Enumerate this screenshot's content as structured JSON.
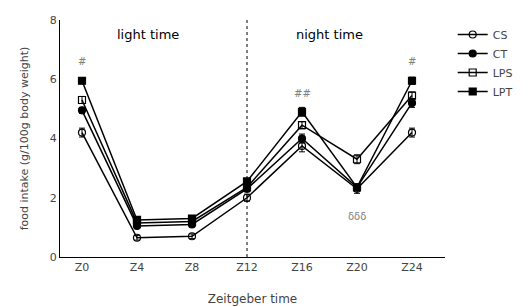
{
  "chart_data": {
    "type": "line",
    "xlabel": "Zeitgeber time",
    "ylabel": "food intake (g/100g body weight)",
    "categories": [
      "Z0",
      "Z4",
      "Z8",
      "Z12",
      "Z16",
      "Z20",
      "Z24"
    ],
    "series": [
      {
        "name": "CS",
        "color": "black",
        "marker": "circle-open",
        "values": [
          4.2,
          0.65,
          0.7,
          2.0,
          3.75,
          2.3,
          4.2
        ],
        "errors": [
          0.15,
          0.08,
          0.08,
          0.12,
          0.2,
          0.15,
          0.15
        ]
      },
      {
        "name": "CT",
        "color": "black",
        "marker": "circle",
        "values": [
          4.95,
          1.05,
          1.1,
          2.3,
          4.0,
          2.35,
          5.2
        ],
        "errors": [
          0.1,
          0.08,
          0.08,
          0.1,
          0.15,
          0.1,
          0.15
        ]
      },
      {
        "name": "LPS",
        "color": "black",
        "marker": "square-open",
        "values": [
          5.3,
          1.15,
          1.2,
          2.35,
          4.45,
          3.3,
          5.45
        ],
        "errors": [
          0.12,
          0.08,
          0.08,
          0.1,
          0.12,
          0.15,
          0.12
        ]
      },
      {
        "name": "LPT",
        "color": "black",
        "marker": "square",
        "values": [
          5.95,
          1.25,
          1.3,
          2.55,
          4.9,
          2.35,
          5.95
        ],
        "errors": [
          0.1,
          0.08,
          0.08,
          0.1,
          0.15,
          0.1,
          0.12
        ]
      }
    ],
    "reference_lines": [
      {
        "x": 3,
        "line_style": "dotted"
      }
    ],
    "annotations": [
      {
        "text": "light time",
        "x": 1.2,
        "y": 7.5,
        "anchor": "middle"
      },
      {
        "text": "night time",
        "x": 4.5,
        "y": 7.5,
        "anchor": "middle"
      },
      {
        "text": "#",
        "x": 0,
        "y": 6.35,
        "anchor": "bottom"
      },
      {
        "text": "##",
        "x": 4,
        "y": 5.25,
        "anchor": "bottom"
      },
      {
        "text": "#",
        "x": 6,
        "y": 6.35,
        "anchor": "bottom"
      },
      {
        "text": "δδδ",
        "x": 5,
        "y": 1.62,
        "anchor": "top"
      }
    ],
    "ylim": [
      0,
      8
    ],
    "yticks": [
      0,
      2,
      4,
      6,
      8
    ],
    "grid": false,
    "legend": "right"
  }
}
